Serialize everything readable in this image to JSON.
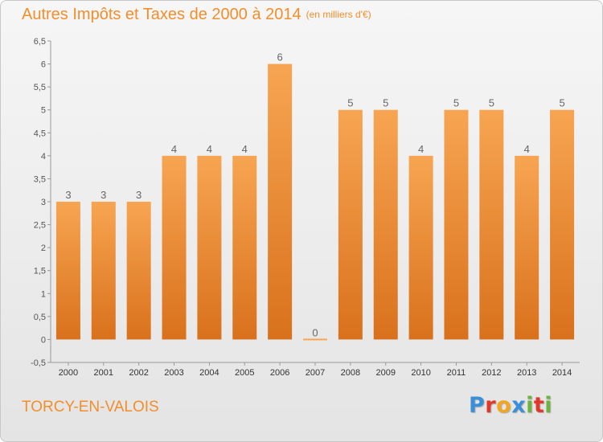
{
  "header": {
    "title": "Autres Impôts et Taxes de 2000 à 2014",
    "unit": "(en milliers d'€)"
  },
  "footer": {
    "commune": "TORCY-EN-VALOIS",
    "brand_letters": [
      "P",
      "r",
      "o",
      "x",
      "i",
      "t",
      "i"
    ],
    "brand_colors": [
      "#3a8fd8",
      "#e2382b",
      "#f2a51f",
      "#3a8fd8",
      "#6cb33f",
      "#e2382b",
      "#6cb33f"
    ]
  },
  "colors": {
    "title": "#f28e2b",
    "bar_light": "#f7a552",
    "bar_dark": "#d9711c",
    "axis": "#999999",
    "tick_text": "#555555",
    "value_text": "#666666"
  },
  "chart_data": {
    "type": "bar",
    "title": "Autres Impôts et Taxes de 2000 à 2014",
    "subtitle": "(en milliers d'€)",
    "categories": [
      "2000",
      "2001",
      "2002",
      "2003",
      "2004",
      "2005",
      "2006",
      "2007",
      "2008",
      "2009",
      "2010",
      "2011",
      "2012",
      "2013",
      "2014"
    ],
    "values": [
      3,
      3,
      3,
      4,
      4,
      4,
      6,
      0,
      5,
      5,
      4,
      5,
      5,
      4,
      5
    ],
    "ylim": [
      -0.5,
      6.5
    ],
    "yticks": [
      "-0,5",
      "0",
      "0,5",
      "1",
      "1,5",
      "2",
      "2,5",
      "3",
      "3,5",
      "4",
      "4,5",
      "5",
      "5,5",
      "6",
      "6,5"
    ],
    "ytick_values": [
      -0.5,
      0,
      0.5,
      1,
      1.5,
      2,
      2.5,
      3,
      3.5,
      4,
      4.5,
      5,
      5.5,
      6,
      6.5
    ],
    "grid": false
  }
}
